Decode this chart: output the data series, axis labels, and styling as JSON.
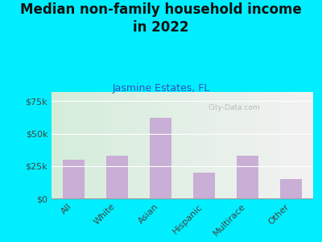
{
  "title": "Median non-family household income\nin 2022",
  "subtitle": "Jasmine Estates, FL",
  "categories": [
    "All",
    "White",
    "Asian",
    "Hispanic",
    "Multirace",
    "Other"
  ],
  "values": [
    30000,
    33000,
    62000,
    20000,
    33000,
    15000
  ],
  "bar_color": "#c9aed6",
  "background_outer": "#00eeff",
  "grad_left": "#d4edda",
  "grad_right": "#f2f2f2",
  "yticks": [
    0,
    25000,
    50000,
    75000
  ],
  "ytick_labels": [
    "$0",
    "$25k",
    "$50k",
    "$75k"
  ],
  "ylim": [
    0,
    82000
  ],
  "watermark": "City-Data.com",
  "title_fontsize": 12,
  "subtitle_fontsize": 9,
  "tick_fontsize": 8,
  "title_color": "#111111",
  "subtitle_color": "#3355bb"
}
